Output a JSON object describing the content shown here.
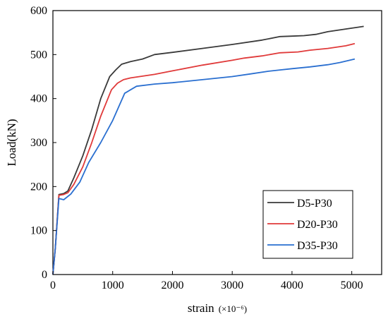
{
  "chart_data": {
    "type": "line",
    "title": "",
    "xlabel": "strain",
    "xlabel_unit": "(×10⁻⁶)",
    "ylabel": "Load(kN)",
    "xlim": [
      0,
      5500
    ],
    "ylim": [
      0,
      600
    ],
    "xticks": [
      0,
      1000,
      2000,
      3000,
      4000,
      5000
    ],
    "yticks": [
      0,
      100,
      200,
      300,
      400,
      500,
      600
    ],
    "grid": false,
    "legend_position": "bottom-right",
    "series": [
      {
        "name": "D5-P30",
        "color": "#3a3a3a",
        "points": [
          [
            0,
            0
          ],
          [
            40,
            60
          ],
          [
            100,
            182
          ],
          [
            180,
            184
          ],
          [
            250,
            190
          ],
          [
            350,
            220
          ],
          [
            500,
            270
          ],
          [
            650,
            330
          ],
          [
            800,
            400
          ],
          [
            950,
            450
          ],
          [
            1050,
            465
          ],
          [
            1150,
            478
          ],
          [
            1300,
            484
          ],
          [
            1500,
            490
          ],
          [
            1700,
            500
          ],
          [
            2000,
            505
          ],
          [
            2500,
            514
          ],
          [
            3000,
            523
          ],
          [
            3500,
            533
          ],
          [
            3800,
            541
          ],
          [
            4000,
            542
          ],
          [
            4200,
            543
          ],
          [
            4400,
            546
          ],
          [
            4600,
            552
          ],
          [
            4800,
            556
          ],
          [
            5000,
            560
          ],
          [
            5200,
            564
          ]
        ]
      },
      {
        "name": "D20-P30",
        "color": "#e03a3a",
        "points": [
          [
            0,
            0
          ],
          [
            40,
            60
          ],
          [
            100,
            180
          ],
          [
            180,
            182
          ],
          [
            250,
            186
          ],
          [
            350,
            205
          ],
          [
            500,
            245
          ],
          [
            650,
            300
          ],
          [
            800,
            360
          ],
          [
            980,
            420
          ],
          [
            1080,
            435
          ],
          [
            1180,
            443
          ],
          [
            1300,
            447
          ],
          [
            1500,
            451
          ],
          [
            1700,
            455
          ],
          [
            2000,
            463
          ],
          [
            2500,
            476
          ],
          [
            3000,
            487
          ],
          [
            3200,
            492
          ],
          [
            3500,
            497
          ],
          [
            3800,
            504
          ],
          [
            4100,
            506
          ],
          [
            4300,
            510
          ],
          [
            4600,
            514
          ],
          [
            4900,
            520
          ],
          [
            5050,
            525
          ]
        ]
      },
      {
        "name": "D35-P30",
        "color": "#2a6fd0",
        "points": [
          [
            0,
            0
          ],
          [
            40,
            60
          ],
          [
            100,
            173
          ],
          [
            180,
            170
          ],
          [
            300,
            183
          ],
          [
            450,
            210
          ],
          [
            600,
            255
          ],
          [
            800,
            300
          ],
          [
            1000,
            350
          ],
          [
            1200,
            412
          ],
          [
            1300,
            420
          ],
          [
            1400,
            428
          ],
          [
            1700,
            433
          ],
          [
            2000,
            436
          ],
          [
            2500,
            443
          ],
          [
            3000,
            450
          ],
          [
            3300,
            456
          ],
          [
            3600,
            462
          ],
          [
            3800,
            465
          ],
          [
            4000,
            468
          ],
          [
            4300,
            472
          ],
          [
            4600,
            477
          ],
          [
            4800,
            482
          ],
          [
            5050,
            490
          ]
        ]
      }
    ]
  }
}
